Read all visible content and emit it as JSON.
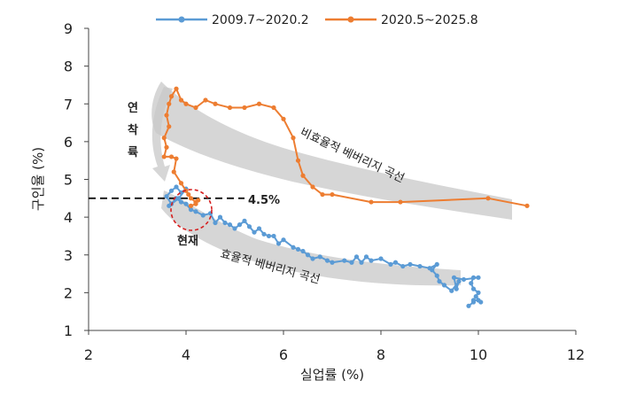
{
  "chart_data": {
    "type": "line",
    "title": "",
    "xlabel": "실업률 (%)",
    "ylabel": "구인율 (%)",
    "xlim": [
      2,
      12
    ],
    "ylim": [
      1,
      9
    ],
    "xticks": [
      2,
      4,
      6,
      8,
      10,
      12
    ],
    "yticks": [
      1,
      2,
      3,
      4,
      5,
      6,
      7,
      8,
      9
    ],
    "grid": false,
    "legend_position": "top",
    "series": [
      {
        "name": "2009.7~2020.2",
        "color": "#5b9bd5",
        "points": [
          [
            9.8,
            1.65
          ],
          [
            9.9,
            1.75
          ],
          [
            9.9,
            1.8
          ],
          [
            10.0,
            1.8
          ],
          [
            10.05,
            1.75
          ],
          [
            9.95,
            1.9
          ],
          [
            10.0,
            2.0
          ],
          [
            9.9,
            2.1
          ],
          [
            9.85,
            2.25
          ],
          [
            9.9,
            2.4
          ],
          [
            10.0,
            2.4
          ],
          [
            9.7,
            2.35
          ],
          [
            9.5,
            2.4
          ],
          [
            9.55,
            2.1
          ],
          [
            9.6,
            2.3
          ],
          [
            9.45,
            2.05
          ],
          [
            9.3,
            2.2
          ],
          [
            9.2,
            2.3
          ],
          [
            9.15,
            2.45
          ],
          [
            9.05,
            2.6
          ],
          [
            9.15,
            2.75
          ],
          [
            9.0,
            2.65
          ],
          [
            8.8,
            2.7
          ],
          [
            8.6,
            2.75
          ],
          [
            8.45,
            2.7
          ],
          [
            8.3,
            2.8
          ],
          [
            8.2,
            2.75
          ],
          [
            8.0,
            2.9
          ],
          [
            7.8,
            2.85
          ],
          [
            7.7,
            2.95
          ],
          [
            7.6,
            2.8
          ],
          [
            7.5,
            2.95
          ],
          [
            7.4,
            2.8
          ],
          [
            7.25,
            2.85
          ],
          [
            7.0,
            2.8
          ],
          [
            6.9,
            2.85
          ],
          [
            6.75,
            2.95
          ],
          [
            6.6,
            2.9
          ],
          [
            6.5,
            3.0
          ],
          [
            6.4,
            3.1
          ],
          [
            6.3,
            3.15
          ],
          [
            6.2,
            3.2
          ],
          [
            6.0,
            3.4
          ],
          [
            5.9,
            3.3
          ],
          [
            5.8,
            3.5
          ],
          [
            5.7,
            3.5
          ],
          [
            5.6,
            3.55
          ],
          [
            5.5,
            3.7
          ],
          [
            5.4,
            3.6
          ],
          [
            5.3,
            3.75
          ],
          [
            5.2,
            3.9
          ],
          [
            5.1,
            3.8
          ],
          [
            5.0,
            3.7
          ],
          [
            4.9,
            3.8
          ],
          [
            4.8,
            3.85
          ],
          [
            4.7,
            4.0
          ],
          [
            4.6,
            3.85
          ],
          [
            4.5,
            4.1
          ],
          [
            4.35,
            4.05
          ],
          [
            4.2,
            4.15
          ],
          [
            4.1,
            4.2
          ],
          [
            4.0,
            4.35
          ],
          [
            3.9,
            4.4
          ],
          [
            3.8,
            4.5
          ],
          [
            3.7,
            4.35
          ],
          [
            3.6,
            4.55
          ],
          [
            3.7,
            4.7
          ],
          [
            3.8,
            4.8
          ],
          [
            3.9,
            4.65
          ],
          [
            4.0,
            4.75
          ],
          [
            3.85,
            4.5
          ],
          [
            3.65,
            4.3
          ]
        ]
      },
      {
        "name": "2020.5~2025.8",
        "color": "#ed7d31",
        "points": [
          [
            11.0,
            4.3
          ],
          [
            10.2,
            4.5
          ],
          [
            8.4,
            4.4
          ],
          [
            7.8,
            4.4
          ],
          [
            7.0,
            4.6
          ],
          [
            6.8,
            4.6
          ],
          [
            6.6,
            4.8
          ],
          [
            6.4,
            5.1
          ],
          [
            6.3,
            5.5
          ],
          [
            6.2,
            6.1
          ],
          [
            6.0,
            6.6
          ],
          [
            5.8,
            6.9
          ],
          [
            5.5,
            7.0
          ],
          [
            5.2,
            6.9
          ],
          [
            4.9,
            6.9
          ],
          [
            4.6,
            7.0
          ],
          [
            4.4,
            7.1
          ],
          [
            4.2,
            6.9
          ],
          [
            4.0,
            7.0
          ],
          [
            3.9,
            7.1
          ],
          [
            3.8,
            7.4
          ],
          [
            3.7,
            7.2
          ],
          [
            3.65,
            7.0
          ],
          [
            3.6,
            6.7
          ],
          [
            3.65,
            6.4
          ],
          [
            3.55,
            6.1
          ],
          [
            3.6,
            5.85
          ],
          [
            3.55,
            5.6
          ],
          [
            3.7,
            5.6
          ],
          [
            3.8,
            5.55
          ],
          [
            3.75,
            5.2
          ],
          [
            3.9,
            4.9
          ],
          [
            4.0,
            4.7
          ],
          [
            4.05,
            4.6
          ],
          [
            4.1,
            4.5
          ],
          [
            4.2,
            4.4
          ],
          [
            4.25,
            4.45
          ],
          [
            4.2,
            4.35
          ],
          [
            4.1,
            4.3
          ]
        ]
      }
    ],
    "reference_line": {
      "label": "4.5%",
      "y": 4.5,
      "x_from": 2,
      "x_to": 5.2
    },
    "annotations": {
      "tightening": [
        "연",
        "착",
        "륙"
      ],
      "inefficient_curve": "비효율적 베버리지 곡선",
      "efficient_curve": "효율적 베버리지 곡선",
      "current": "현재"
    }
  }
}
